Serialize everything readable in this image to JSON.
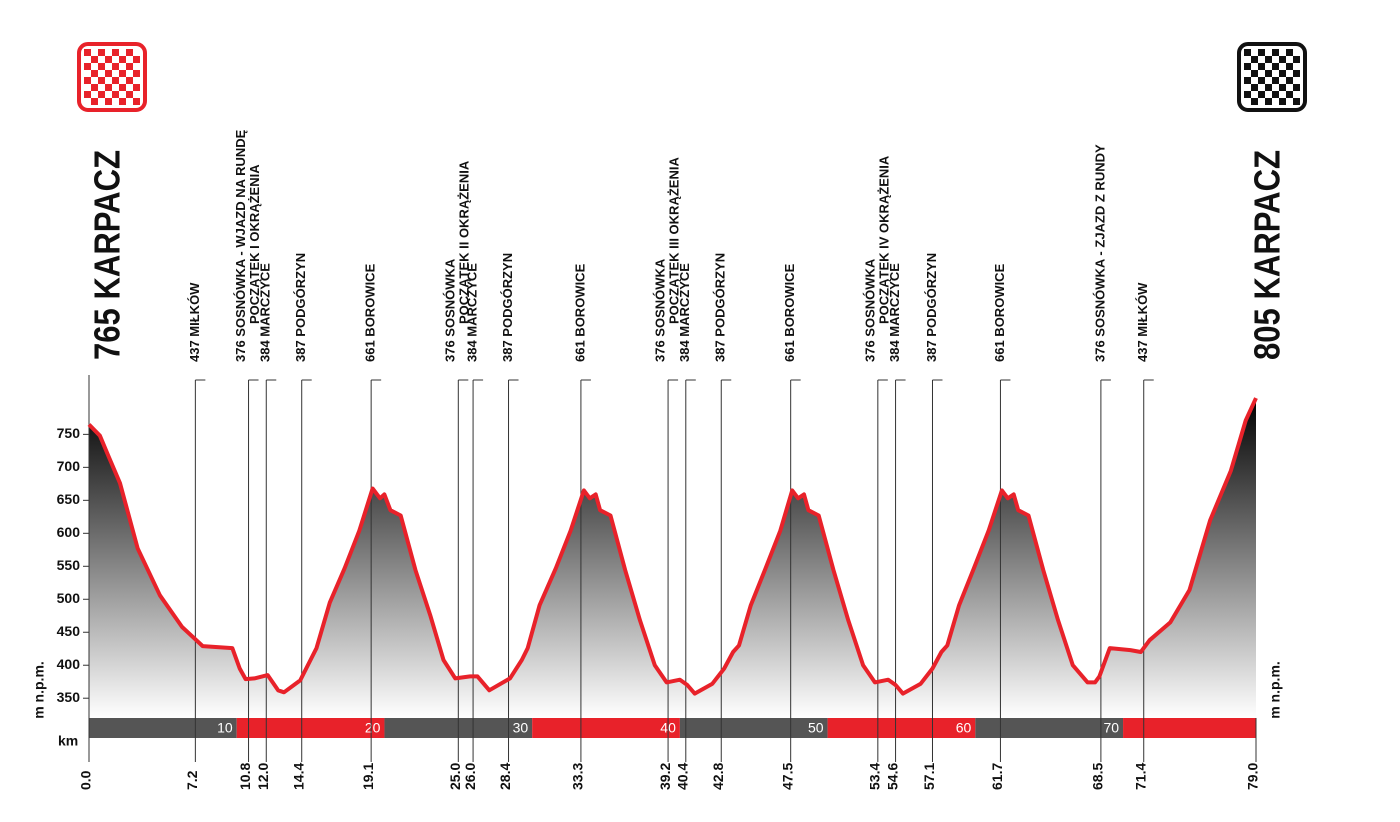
{
  "chart_data": {
    "type": "area",
    "y_unit": "m n.p.m.",
    "x_unit": "km",
    "line_color": "#e8222a",
    "fill_top": "#000000",
    "fill_bottom": "#ffffff",
    "bar_colors": [
      "#555555",
      "#e8222a"
    ],
    "xlim": [
      0,
      79
    ],
    "ylim": [
      320,
      840
    ],
    "yticks": [
      350,
      400,
      450,
      500,
      550,
      600,
      650,
      700,
      750
    ],
    "km_marks": [
      10,
      20,
      30,
      40,
      50,
      60,
      70
    ],
    "start": {
      "km": {
        "value": 0,
        "label": "0.0"
      },
      "name": "765 KARPACZ"
    },
    "finish": {
      "km": {
        "value": 79,
        "label": "79.0"
      },
      "name": "805 KARPACZ"
    },
    "waypoints": [
      {
        "km": 7.2,
        "name": [
          "437 MIŁKÓW"
        ]
      },
      {
        "km": 10.8,
        "name": [
          "376 SOSNÓWKA - WJAZD NA RUNDĘ",
          "POCZĄTEK I OKRĄŻENIA"
        ]
      },
      {
        "km": {
          "value": 12,
          "label": "12.0"
        },
        "name": [
          "384 MARCZYCE"
        ]
      },
      {
        "km": 14.4,
        "name": [
          "387 PODGÓRZYN"
        ]
      },
      {
        "km": 19.1,
        "name": [
          "661 BOROWICE"
        ]
      },
      {
        "km": {
          "value": 25,
          "label": "25.0"
        },
        "name": [
          "376 SOSNÓWKA",
          "POCZĄTEK II OKRĄŻENIA"
        ]
      },
      {
        "km": {
          "value": 26,
          "label": "26.0"
        },
        "name": [
          "384 MARCZYCE"
        ]
      },
      {
        "km": 28.4,
        "name": [
          "387 PODGÓRZYN"
        ]
      },
      {
        "km": 33.3,
        "name": [
          "661 BOROWICE"
        ]
      },
      {
        "km": 39.2,
        "name": [
          "376 SOSNÓWKA",
          "POCZĄTEK III OKRĄŻENIA"
        ]
      },
      {
        "km": 40.4,
        "name": [
          "384 MARCZYCE"
        ]
      },
      {
        "km": 42.8,
        "name": [
          "387 PODGÓRZYN"
        ]
      },
      {
        "km": 47.5,
        "name": [
          "661 BOROWICE"
        ]
      },
      {
        "km": 53.4,
        "name": [
          "376 SOSNÓWKA",
          "POCZĄTEK IV OKRĄŻENIA"
        ]
      },
      {
        "km": 54.6,
        "name": [
          "384 MARCZYCE"
        ]
      },
      {
        "km": 57.1,
        "name": [
          "387 PODGÓRZYN"
        ]
      },
      {
        "km": 61.7,
        "name": [
          "661 BOROWICE"
        ]
      },
      {
        "km": 68.5,
        "name": [
          "376 SOSNÓWKA - ZJAZD Z RUNDY"
        ]
      },
      {
        "km": 71.4,
        "name": [
          "437 MIŁKÓW"
        ]
      }
    ],
    "x": [
      0,
      0.74,
      1.3,
      2.1,
      3.3,
      4.8,
      6.3,
      7.7,
      9.7,
      10.2,
      10.6,
      11.2,
      12.1,
      12.8,
      13.2,
      14.3,
      15.4,
      16.3,
      17.3,
      18.3,
      19.2,
      19.7,
      20.0,
      20.4,
      21.1,
      22.1,
      23.1,
      24.0,
      24.8,
      25.8,
      26.3,
      27.1,
      28.5,
      29.3,
      29.7,
      30.5,
      31.6,
      32.6,
      33.5,
      33.9,
      34.3,
      34.6,
      35.3,
      36.3,
      37.3,
      38.3,
      39.1,
      40.0,
      40.5,
      41.0,
      42.2,
      43.0,
      43.6,
      44.0,
      44.8,
      45.8,
      46.8,
      47.6,
      48.0,
      48.4,
      48.7,
      49.4,
      50.4,
      51.4,
      52.4,
      53.2,
      54.1,
      54.6,
      55.1,
      56.3,
      57.1,
      57.7,
      58.1,
      58.9,
      59.9,
      60.9,
      61.8,
      62.2,
      62.6,
      62.9,
      63.6,
      64.6,
      65.6,
      66.6,
      67.6,
      68.1,
      68.4,
      69.1,
      70.5,
      71.2,
      71.8,
      73.2,
      74.5,
      75.9,
      77.3,
      78.3,
      79.0
    ],
    "values": [
      765,
      748,
      718,
      676,
      577,
      506,
      458,
      429,
      426,
      395,
      379,
      380,
      385,
      362,
      359,
      377,
      426,
      495,
      547,
      604,
      668,
      653,
      659,
      635,
      627,
      544,
      476,
      408,
      380,
      383,
      383,
      362,
      380,
      408,
      426,
      491,
      547,
      604,
      665,
      653,
      659,
      635,
      627,
      544,
      468,
      400,
      374,
      378,
      370,
      357,
      372,
      395,
      420,
      430,
      491,
      547,
      604,
      665,
      653,
      659,
      635,
      627,
      544,
      468,
      400,
      374,
      378,
      370,
      357,
      372,
      395,
      420,
      430,
      491,
      547,
      604,
      665,
      653,
      659,
      635,
      627,
      544,
      468,
      400,
      374,
      374,
      383,
      426,
      423,
      420,
      438,
      465,
      514,
      620,
      695,
      771,
      805
    ]
  }
}
